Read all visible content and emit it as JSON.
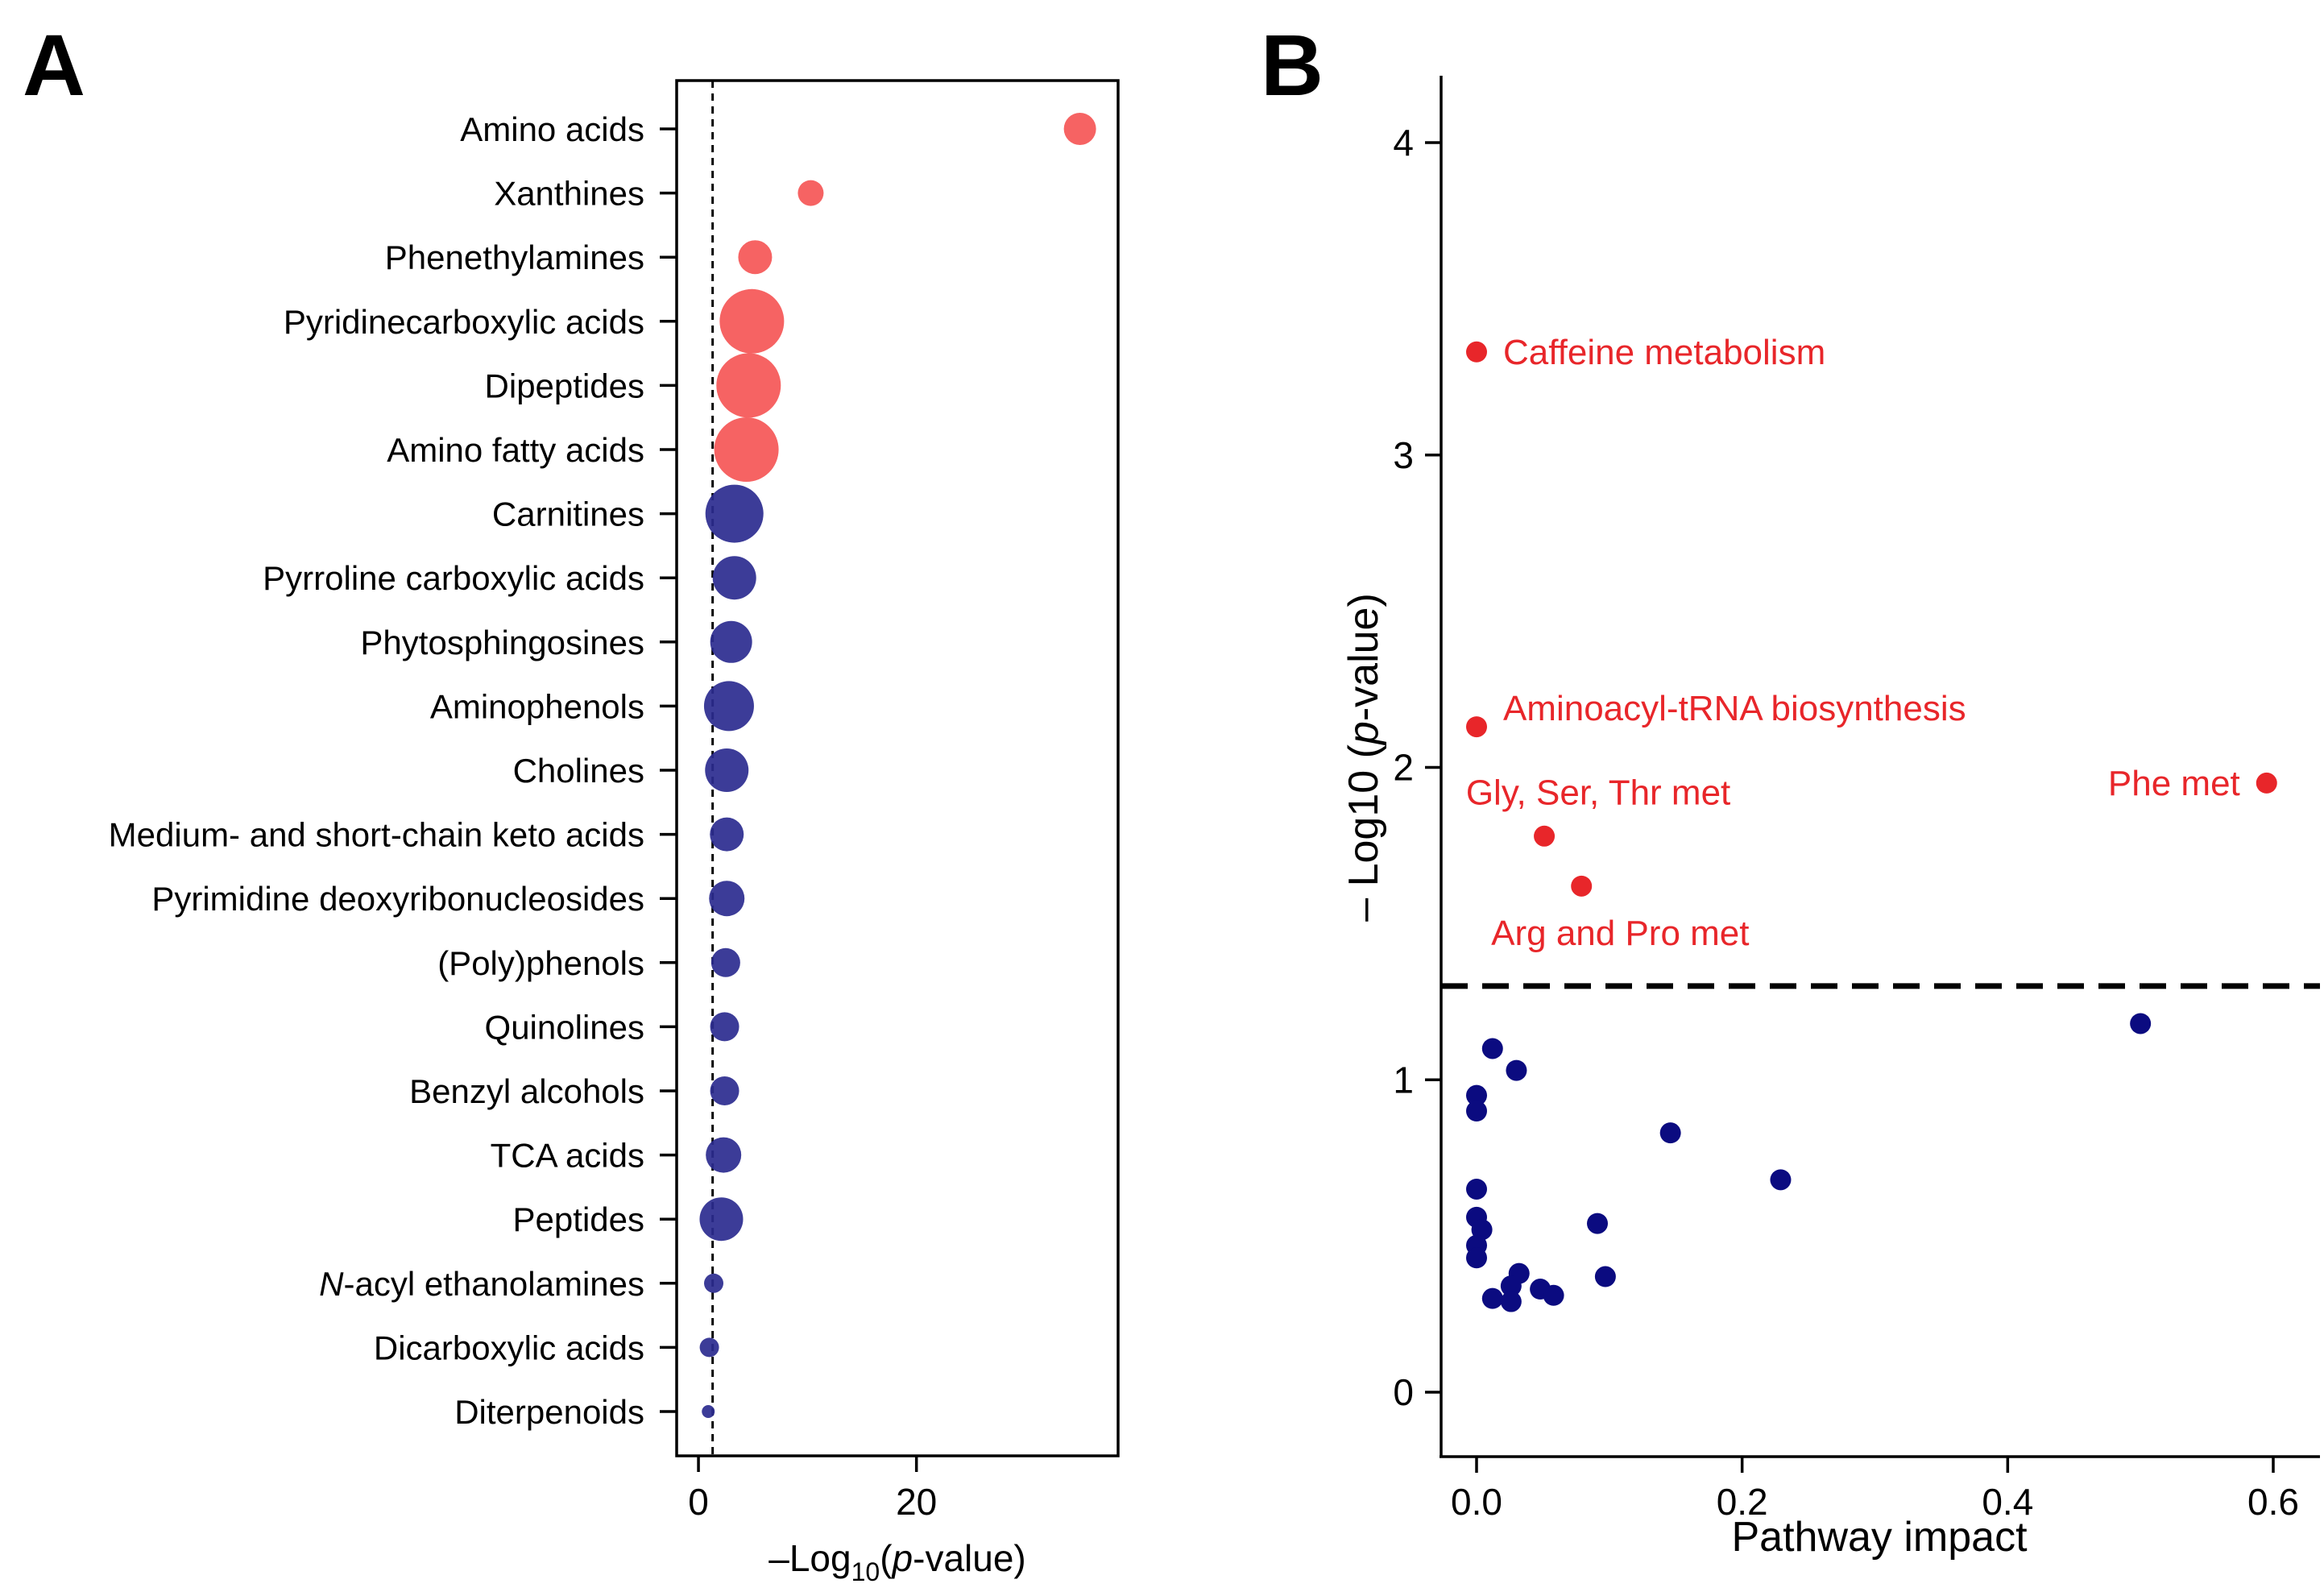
{
  "panel_a": {
    "letter": "A",
    "xlabel_prefix": "–Log",
    "xlabel_sub": "10",
    "xlabel_mid": "(",
    "xlabel_italic": "p",
    "xlabel_suffix": "-value)"
  },
  "panel_b": {
    "letter": "B",
    "xlabel": "Pathway impact",
    "ylabel_prefix": "– Log10 (",
    "ylabel_italic": "p",
    "ylabel_suffix": "-value)"
  },
  "chart_data": [
    {
      "id": "panel_a",
      "type": "scatter",
      "title": "",
      "xlabel": "–Log10(p-value)",
      "ylabel": "",
      "xlim": [
        -2,
        38.5
      ],
      "xticks": [
        0,
        20
      ],
      "grid": false,
      "threshold_x": 1.3,
      "colors": {
        "significant": "#f55b5b",
        "not_significant": "#2b2b8f"
      },
      "categories": [
        {
          "label": "Amino acids",
          "x": 35.0,
          "size": 1.0,
          "significant": true
        },
        {
          "label": "Xanthines",
          "x": 10.3,
          "size": 0.8,
          "significant": true
        },
        {
          "label": "Phenethylamines",
          "x": 5.2,
          "size": 1.05,
          "significant": true
        },
        {
          "label": "Pyridinecarboxylic acids",
          "x": 4.9,
          "size": 2.0,
          "significant": true
        },
        {
          "label": "Dipeptides",
          "x": 4.6,
          "size": 2.0,
          "significant": true
        },
        {
          "label": "Amino fatty acids",
          "x": 4.4,
          "size": 2.0,
          "significant": true
        },
        {
          "label": "Carnitines",
          "x": 3.3,
          "size": 1.8,
          "significant": false
        },
        {
          "label": "Pyrroline carboxylic acids",
          "x": 3.3,
          "size": 1.35,
          "significant": false
        },
        {
          "label": "Phytosphingosines",
          "x": 3.0,
          "size": 1.3,
          "significant": false
        },
        {
          "label": "Aminophenols",
          "x": 2.8,
          "size": 1.55,
          "significant": false
        },
        {
          "label": "Cholines",
          "x": 2.6,
          "size": 1.35,
          "significant": false
        },
        {
          "label": "Medium- and short-chain keto acids",
          "x": 2.6,
          "size": 1.05,
          "significant": false
        },
        {
          "label": "Pyrimidine deoxyribonucleosides",
          "x": 2.6,
          "size": 1.1,
          "significant": false
        },
        {
          "label": "(Poly)phenols",
          "x": 2.5,
          "size": 0.9,
          "significant": false
        },
        {
          "label": "Quinolines",
          "x": 2.4,
          "size": 0.9,
          "significant": false
        },
        {
          "label": "Benzyl alcohols",
          "x": 2.4,
          "size": 0.9,
          "significant": false
        },
        {
          "label": "TCA acids",
          "x": 2.3,
          "size": 1.1,
          "significant": false
        },
        {
          "label": "Peptides",
          "x": 2.1,
          "size": 1.35,
          "significant": false
        },
        {
          "label": "N-acyl ethanolamines",
          "x": 1.4,
          "size": 0.6,
          "significant": false,
          "italic_prefix": "N"
        },
        {
          "label": "Dicarboxylic acids",
          "x": 1.0,
          "size": 0.6,
          "significant": false
        },
        {
          "label": "Diterpenoids",
          "x": 0.9,
          "size": 0.4,
          "significant": false
        }
      ]
    },
    {
      "id": "panel_b",
      "type": "scatter",
      "title": "",
      "xlabel": "Pathway impact",
      "ylabel": "– Log10 (p-value)",
      "xlim": [
        -0.03,
        0.62
      ],
      "ylim": [
        -0.2,
        4.2
      ],
      "xticks": [
        0.0,
        0.2,
        0.4,
        0.6
      ],
      "xtick_labels": [
        "0.0",
        "0.2",
        "0.4",
        "0.6"
      ],
      "yticks": [
        0,
        1,
        2,
        3,
        4
      ],
      "ytick_labels": [
        "0",
        "1",
        "2",
        "3",
        "4"
      ],
      "grid": false,
      "threshold_y": 1.3,
      "colors": {
        "significant": "#e8262a",
        "not_significant": "#0b0b80"
      },
      "significant_points": [
        {
          "label": "Caffeine metabolism",
          "x": 0.0,
          "y": 3.33,
          "label_anchor": "start",
          "label_dx": 0.02,
          "label_dy": 0.0
        },
        {
          "label": "Aminoacyl-tRNA biosynthesis",
          "x": 0.0,
          "y": 2.13,
          "label_anchor": "start",
          "label_dx": 0.02,
          "label_dy": 0.06
        },
        {
          "label": "Phe met",
          "x": 0.595,
          "y": 1.95,
          "label_anchor": "end",
          "label_dx": -0.02,
          "label_dy": 0.0
        },
        {
          "label": "Gly, Ser, Thr met",
          "x": 0.051,
          "y": 1.78,
          "label_anchor": "start",
          "label_dx": -0.059,
          "label_dy": 0.14
        },
        {
          "label": "Arg and Pro met",
          "x": 0.079,
          "y": 1.62,
          "label_anchor": "start",
          "label_dx": -0.068,
          "label_dy": -0.15
        }
      ],
      "points": [
        {
          "x": 0.012,
          "y": 1.1
        },
        {
          "x": 0.03,
          "y": 1.03
        },
        {
          "x": 0.5,
          "y": 1.18
        },
        {
          "x": 0.0,
          "y": 0.95
        },
        {
          "x": 0.0,
          "y": 0.9
        },
        {
          "x": 0.146,
          "y": 0.83
        },
        {
          "x": 0.229,
          "y": 0.68
        },
        {
          "x": 0.0,
          "y": 0.65
        },
        {
          "x": 0.0,
          "y": 0.56
        },
        {
          "x": 0.004,
          "y": 0.52
        },
        {
          "x": 0.091,
          "y": 0.54
        },
        {
          "x": 0.0,
          "y": 0.47
        },
        {
          "x": 0.0,
          "y": 0.43
        },
        {
          "x": 0.097,
          "y": 0.37
        },
        {
          "x": 0.032,
          "y": 0.38
        },
        {
          "x": 0.026,
          "y": 0.34
        },
        {
          "x": 0.048,
          "y": 0.33
        },
        {
          "x": 0.058,
          "y": 0.31
        },
        {
          "x": 0.012,
          "y": 0.3
        },
        {
          "x": 0.026,
          "y": 0.29
        }
      ]
    }
  ]
}
